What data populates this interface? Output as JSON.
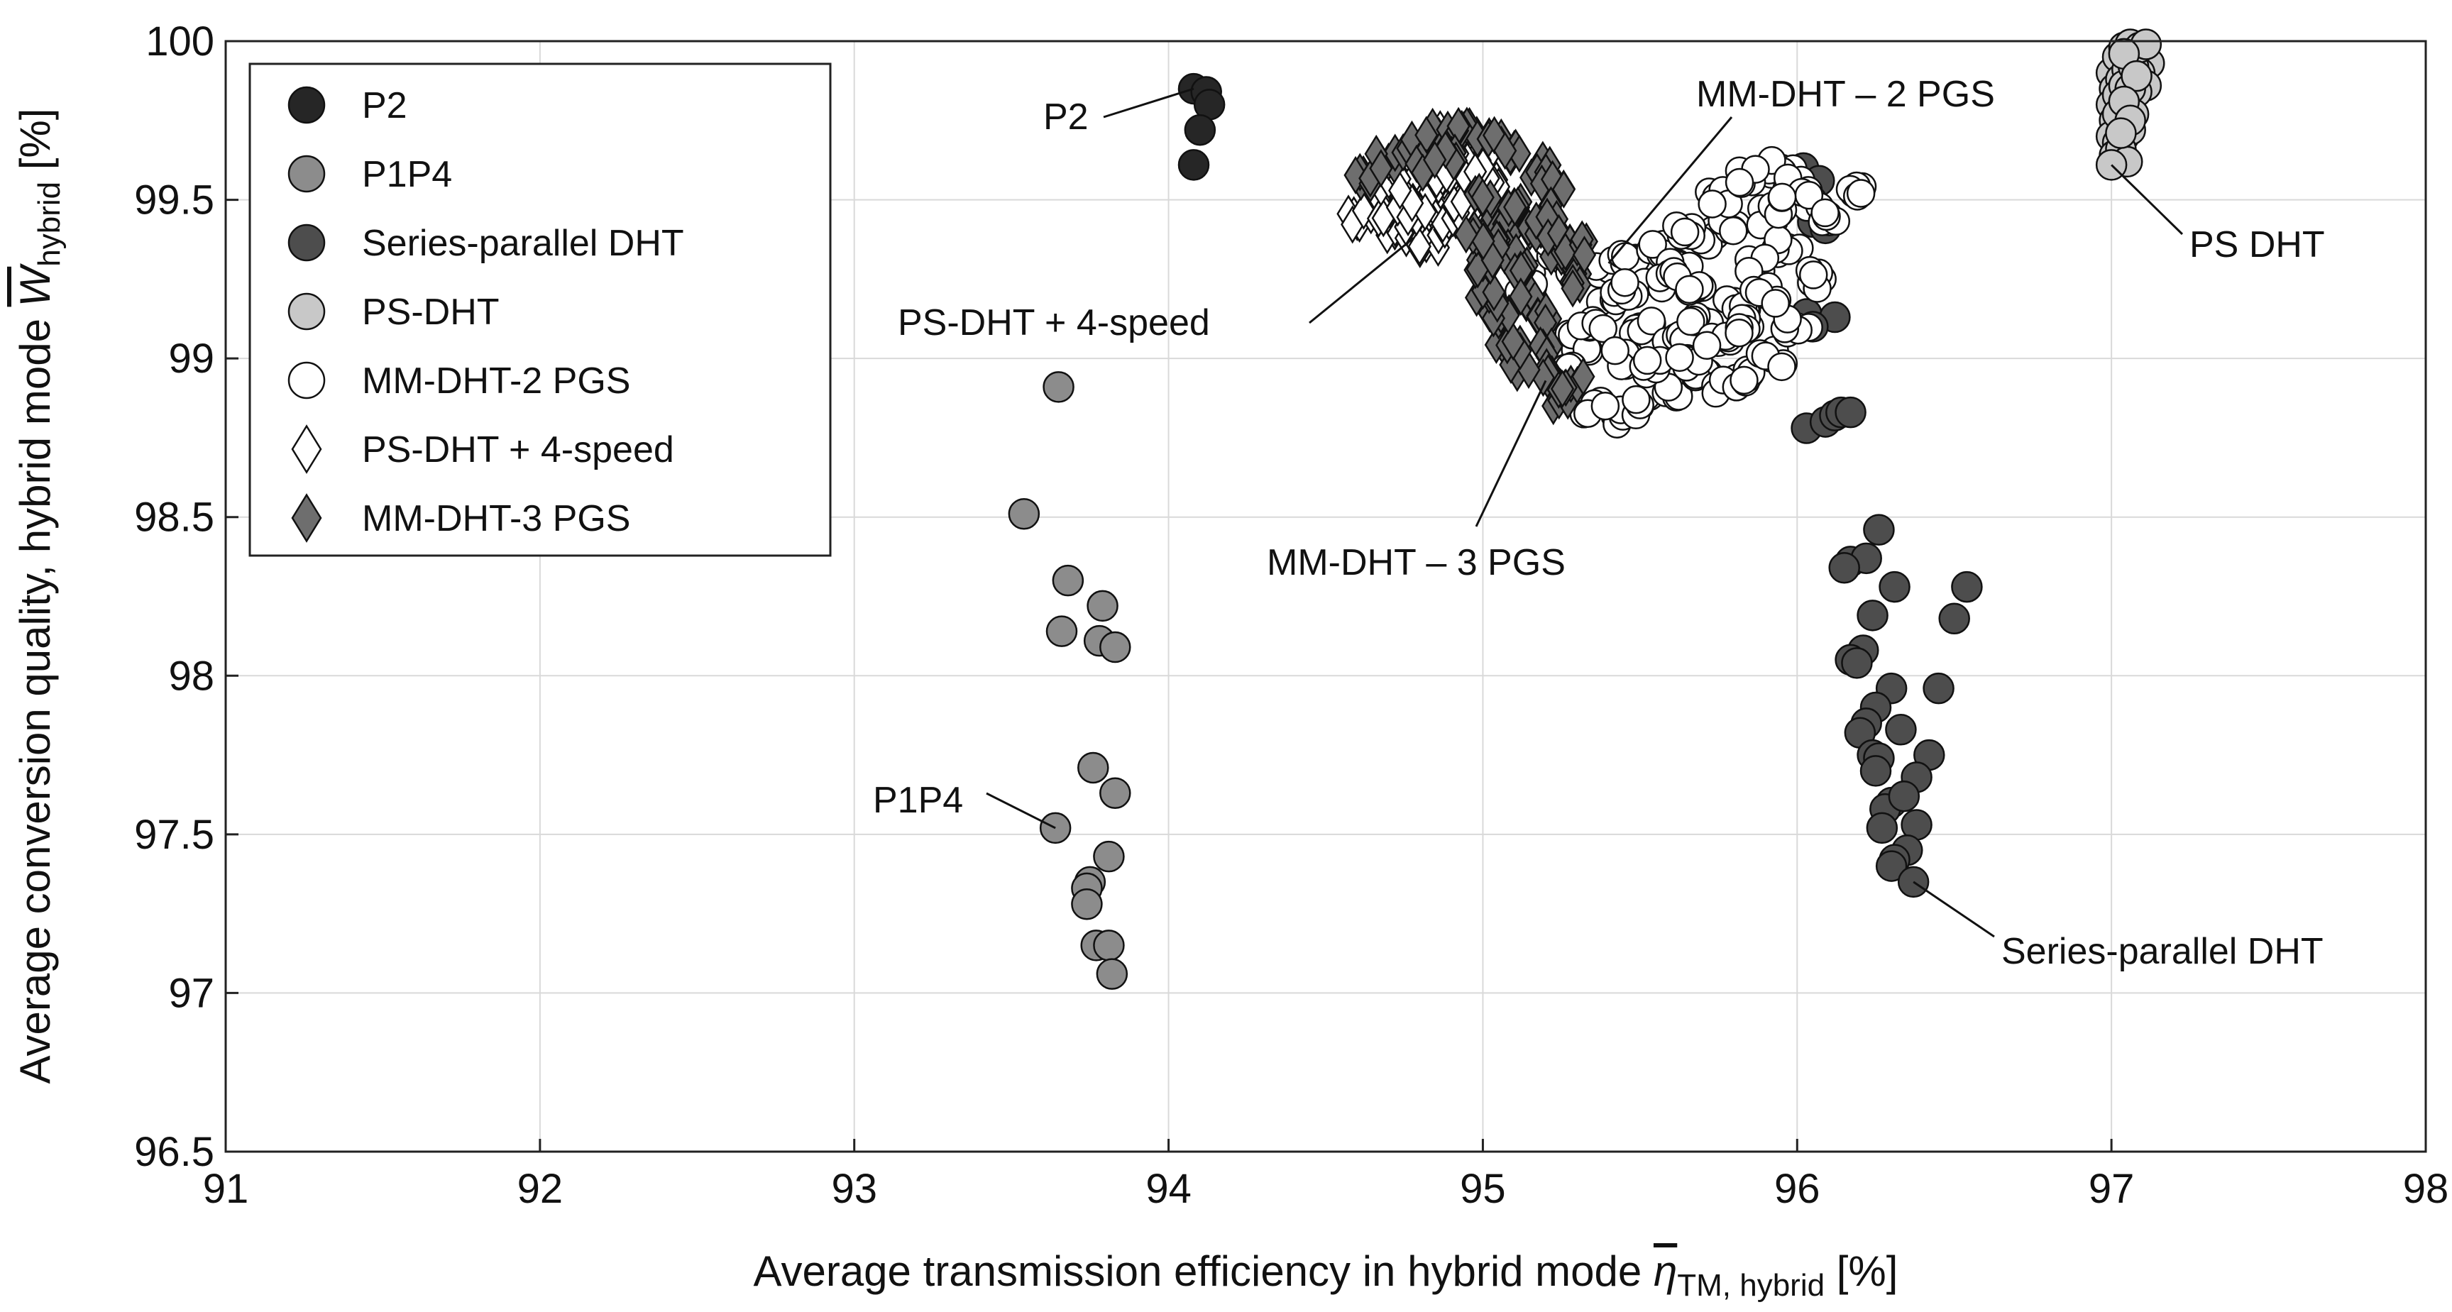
{
  "chart_data": {
    "type": "scatter",
    "title": "",
    "xlabel": {
      "main": "Average transmission efficiency in hybrid mode ",
      "symbol": "η",
      "sub": "TM, hybrid",
      "unit": " [%]"
    },
    "ylabel": {
      "main": "Average conversion quality, hybrid mode ",
      "symbol": "W",
      "sub": "hybrid",
      "unit": " [%]"
    },
    "xlim": [
      91,
      98
    ],
    "ylim": [
      96.5,
      100
    ],
    "xticks": [
      "91",
      "92",
      "93",
      "94",
      "95",
      "96",
      "97",
      "98"
    ],
    "yticks": [
      "96.5",
      "97",
      "97.5",
      "98",
      "98.5",
      "99",
      "99.5",
      "100"
    ],
    "grid": true,
    "legend_position": "top-left",
    "series": [
      {
        "name": "P2",
        "marker": "circle",
        "color": "#262626",
        "points": [
          [
            94.08,
            99.85
          ],
          [
            94.12,
            99.84
          ],
          [
            94.13,
            99.8
          ],
          [
            94.1,
            99.72
          ],
          [
            94.08,
            99.61
          ]
        ]
      },
      {
        "name": "P1P4",
        "marker": "circle",
        "color": "#8c8c8c",
        "points": [
          [
            93.65,
            98.91
          ],
          [
            93.54,
            98.51
          ],
          [
            93.68,
            98.3
          ],
          [
            93.79,
            98.22
          ],
          [
            93.66,
            98.14
          ],
          [
            93.78,
            98.11
          ],
          [
            93.83,
            98.09
          ],
          [
            93.76,
            97.71
          ],
          [
            93.83,
            97.63
          ],
          [
            93.64,
            97.52
          ],
          [
            93.81,
            97.43
          ],
          [
            93.75,
            97.35
          ],
          [
            93.74,
            97.33
          ],
          [
            93.74,
            97.28
          ],
          [
            93.77,
            97.15
          ],
          [
            93.81,
            97.15
          ],
          [
            93.82,
            97.06
          ]
        ]
      },
      {
        "name": "Series-parallel DHT",
        "marker": "circle",
        "color": "#4d4d4d",
        "points": [
          [
            96.02,
            99.6
          ],
          [
            96.07,
            99.56
          ],
          [
            96.03,
            99.5
          ],
          [
            95.98,
            99.52
          ],
          [
            96.05,
            99.43
          ],
          [
            96.09,
            99.41
          ],
          [
            96.03,
            99.14
          ],
          [
            96.12,
            99.13
          ],
          [
            96.05,
            99.1
          ],
          [
            96.03,
            98.78
          ],
          [
            96.09,
            98.8
          ],
          [
            96.12,
            98.82
          ],
          [
            96.14,
            98.83
          ],
          [
            96.17,
            98.83
          ],
          [
            96.26,
            98.46
          ],
          [
            96.17,
            98.36
          ],
          [
            96.22,
            98.37
          ],
          [
            96.15,
            98.34
          ],
          [
            96.54,
            98.28
          ],
          [
            96.31,
            98.28
          ],
          [
            96.5,
            98.18
          ],
          [
            96.24,
            98.19
          ],
          [
            96.21,
            98.08
          ],
          [
            96.17,
            98.05
          ],
          [
            96.19,
            98.04
          ],
          [
            96.3,
            97.96
          ],
          [
            96.45,
            97.96
          ],
          [
            96.25,
            97.9
          ],
          [
            96.22,
            97.85
          ],
          [
            96.2,
            97.82
          ],
          [
            96.33,
            97.83
          ],
          [
            96.24,
            97.75
          ],
          [
            96.26,
            97.74
          ],
          [
            96.42,
            97.75
          ],
          [
            96.25,
            97.7
          ],
          [
            96.38,
            97.68
          ],
          [
            96.3,
            97.6
          ],
          [
            96.28,
            97.58
          ],
          [
            96.34,
            97.62
          ],
          [
            96.27,
            97.52
          ],
          [
            96.38,
            97.53
          ],
          [
            96.35,
            97.45
          ],
          [
            96.31,
            97.42
          ],
          [
            96.3,
            97.4
          ],
          [
            96.37,
            97.35
          ]
        ]
      },
      {
        "name": "PS-DHT",
        "marker": "circle",
        "color": "#c8c8c8",
        "points": [
          [
            97.0,
            99.9
          ],
          [
            97.02,
            99.95
          ],
          [
            97.04,
            99.98
          ],
          [
            97.06,
            99.99
          ],
          [
            97.08,
            99.97
          ],
          [
            97.1,
            99.96
          ],
          [
            97.12,
            99.93
          ],
          [
            97.01,
            99.85
          ],
          [
            97.03,
            99.88
          ],
          [
            97.05,
            99.91
          ],
          [
            97.07,
            99.94
          ],
          [
            97.09,
            99.9
          ],
          [
            97.11,
            99.86
          ],
          [
            97.0,
            99.8
          ],
          [
            97.02,
            99.83
          ],
          [
            97.04,
            99.86
          ],
          [
            97.06,
            99.8
          ],
          [
            97.08,
            99.84
          ],
          [
            97.01,
            99.75
          ],
          [
            97.03,
            99.78
          ],
          [
            97.05,
            99.73
          ],
          [
            97.07,
            99.77
          ],
          [
            97.0,
            99.7
          ],
          [
            97.02,
            99.68
          ],
          [
            97.04,
            99.7
          ],
          [
            97.06,
            99.72
          ],
          [
            97.01,
            99.64
          ],
          [
            97.03,
            99.66
          ],
          [
            97.05,
            99.62
          ],
          [
            97.0,
            99.61
          ],
          [
            97.07,
            99.92
          ],
          [
            97.09,
            99.98
          ],
          [
            97.11,
            99.99
          ],
          [
            97.04,
            99.96
          ],
          [
            97.06,
            99.85
          ],
          [
            97.08,
            99.89
          ],
          [
            97.02,
            99.77
          ],
          [
            97.04,
            99.81
          ],
          [
            97.06,
            99.75
          ],
          [
            97.03,
            99.71
          ]
        ]
      },
      {
        "name": "MM-DHT-2 PGS",
        "marker": "circle",
        "color": "#ffffff",
        "cloud": true,
        "points": [
          [
            95.15,
            99.24
          ],
          [
            95.22,
            99.35
          ],
          [
            95.3,
            99.3
          ],
          [
            95.38,
            99.28
          ],
          [
            95.45,
            99.3
          ],
          [
            95.55,
            99.35
          ],
          [
            95.62,
            99.3
          ],
          [
            95.7,
            99.38
          ],
          [
            95.8,
            99.42
          ],
          [
            95.9,
            99.45
          ],
          [
            95.95,
            99.6
          ],
          [
            96.0,
            99.55
          ],
          [
            96.05,
            99.5
          ],
          [
            96.1,
            99.45
          ],
          [
            96.18,
            99.52
          ],
          [
            95.97,
            99.35
          ],
          [
            96.08,
            99.25
          ],
          [
            95.88,
            99.3
          ],
          [
            95.75,
            99.5
          ],
          [
            95.65,
            99.4
          ],
          [
            95.85,
            99.58
          ],
          [
            95.92,
            99.48
          ],
          [
            95.3,
            99.05
          ],
          [
            95.25,
            98.95
          ],
          [
            95.35,
            98.85
          ],
          [
            95.42,
            98.82
          ],
          [
            95.5,
            98.85
          ],
          [
            95.6,
            98.9
          ],
          [
            95.7,
            98.95
          ],
          [
            95.78,
            98.92
          ],
          [
            95.85,
            98.95
          ],
          [
            95.92,
            99.0
          ],
          [
            96.0,
            99.1
          ],
          [
            95.4,
            99.18
          ],
          [
            95.5,
            99.1
          ],
          [
            95.6,
            99.05
          ],
          [
            95.7,
            99.12
          ],
          [
            95.8,
            99.18
          ],
          [
            95.9,
            99.2
          ],
          [
            95.48,
            99.22
          ],
          [
            95.58,
            99.25
          ],
          [
            95.68,
            99.22
          ],
          [
            95.35,
            99.12
          ],
          [
            95.45,
            99.0
          ],
          [
            95.55,
            98.98
          ],
          [
            95.65,
            99.0
          ],
          [
            95.75,
            99.05
          ],
          [
            95.85,
            99.1
          ]
        ]
      },
      {
        "name": "PS-DHT + 4-speed",
        "marker": "diamond",
        "color": "#ffffff",
        "cloud": true,
        "points": [
          [
            94.6,
            99.43
          ],
          [
            94.65,
            99.48
          ],
          [
            94.7,
            99.52
          ],
          [
            94.75,
            99.55
          ],
          [
            94.8,
            99.62
          ],
          [
            94.85,
            99.68
          ],
          [
            94.9,
            99.7
          ],
          [
            94.95,
            99.68
          ],
          [
            95.0,
            99.65
          ],
          [
            94.72,
            99.4
          ],
          [
            94.78,
            99.44
          ],
          [
            94.84,
            99.5
          ],
          [
            94.9,
            99.54
          ],
          [
            94.96,
            99.6
          ],
          [
            95.02,
            99.55
          ],
          [
            94.82,
            99.36
          ],
          [
            94.88,
            99.42
          ],
          [
            94.94,
            99.48
          ],
          [
            94.76,
            99.6
          ],
          [
            94.82,
            99.65
          ],
          [
            94.88,
            99.62
          ],
          [
            94.68,
            99.46
          ],
          [
            94.74,
            99.5
          ],
          [
            94.8,
            99.46
          ],
          [
            94.86,
            99.56
          ],
          [
            94.92,
            99.66
          ],
          [
            94.98,
            99.58
          ],
          [
            94.7,
            99.55
          ]
        ]
      },
      {
        "name": "MM-DHT-3 PGS",
        "marker": "diamond",
        "color": "#6e6e6e",
        "cloud": true,
        "points": [
          [
            94.62,
            99.58
          ],
          [
            94.7,
            99.62
          ],
          [
            94.78,
            99.66
          ],
          [
            94.86,
            99.7
          ],
          [
            94.94,
            99.72
          ],
          [
            95.02,
            99.7
          ],
          [
            95.1,
            99.66
          ],
          [
            95.18,
            99.6
          ],
          [
            95.22,
            99.55
          ],
          [
            95.0,
            99.5
          ],
          [
            95.05,
            99.42
          ],
          [
            95.08,
            99.35
          ],
          [
            95.12,
            99.28
          ],
          [
            95.15,
            99.2
          ],
          [
            95.18,
            99.12
          ],
          [
            95.2,
            99.02
          ],
          [
            95.22,
            98.95
          ],
          [
            95.25,
            98.88
          ],
          [
            95.28,
            98.92
          ],
          [
            95.12,
            98.98
          ],
          [
            95.08,
            99.05
          ],
          [
            95.05,
            99.12
          ],
          [
            95.02,
            99.2
          ],
          [
            95.0,
            99.3
          ],
          [
            94.98,
            99.38
          ],
          [
            95.25,
            99.32
          ],
          [
            95.28,
            99.24
          ],
          [
            95.1,
            99.48
          ],
          [
            95.15,
            99.4
          ],
          [
            94.9,
            99.64
          ],
          [
            94.82,
            99.6
          ],
          [
            95.2,
            99.46
          ],
          [
            95.24,
            99.38
          ],
          [
            95.3,
            99.35
          ]
        ]
      }
    ],
    "annotations": [
      {
        "text": "P2",
        "target": [
          94.08,
          99.85
        ]
      },
      {
        "text": "P1P4",
        "target": [
          93.64,
          97.52
        ]
      },
      {
        "text": "PS DHT",
        "target": [
          97.0,
          99.61
        ]
      },
      {
        "text": "MM-DHT  – 2 PGS",
        "target": [
          95.4,
          99.3
        ]
      },
      {
        "text": "PS-DHT  + 4-speed",
        "target": [
          94.78,
          99.38
        ]
      },
      {
        "text": "MM-DHT  – 3 PGS",
        "target": [
          95.2,
          98.93
        ]
      },
      {
        "text": "Series-parallel DHT",
        "target": [
          96.37,
          97.35
        ]
      }
    ]
  }
}
